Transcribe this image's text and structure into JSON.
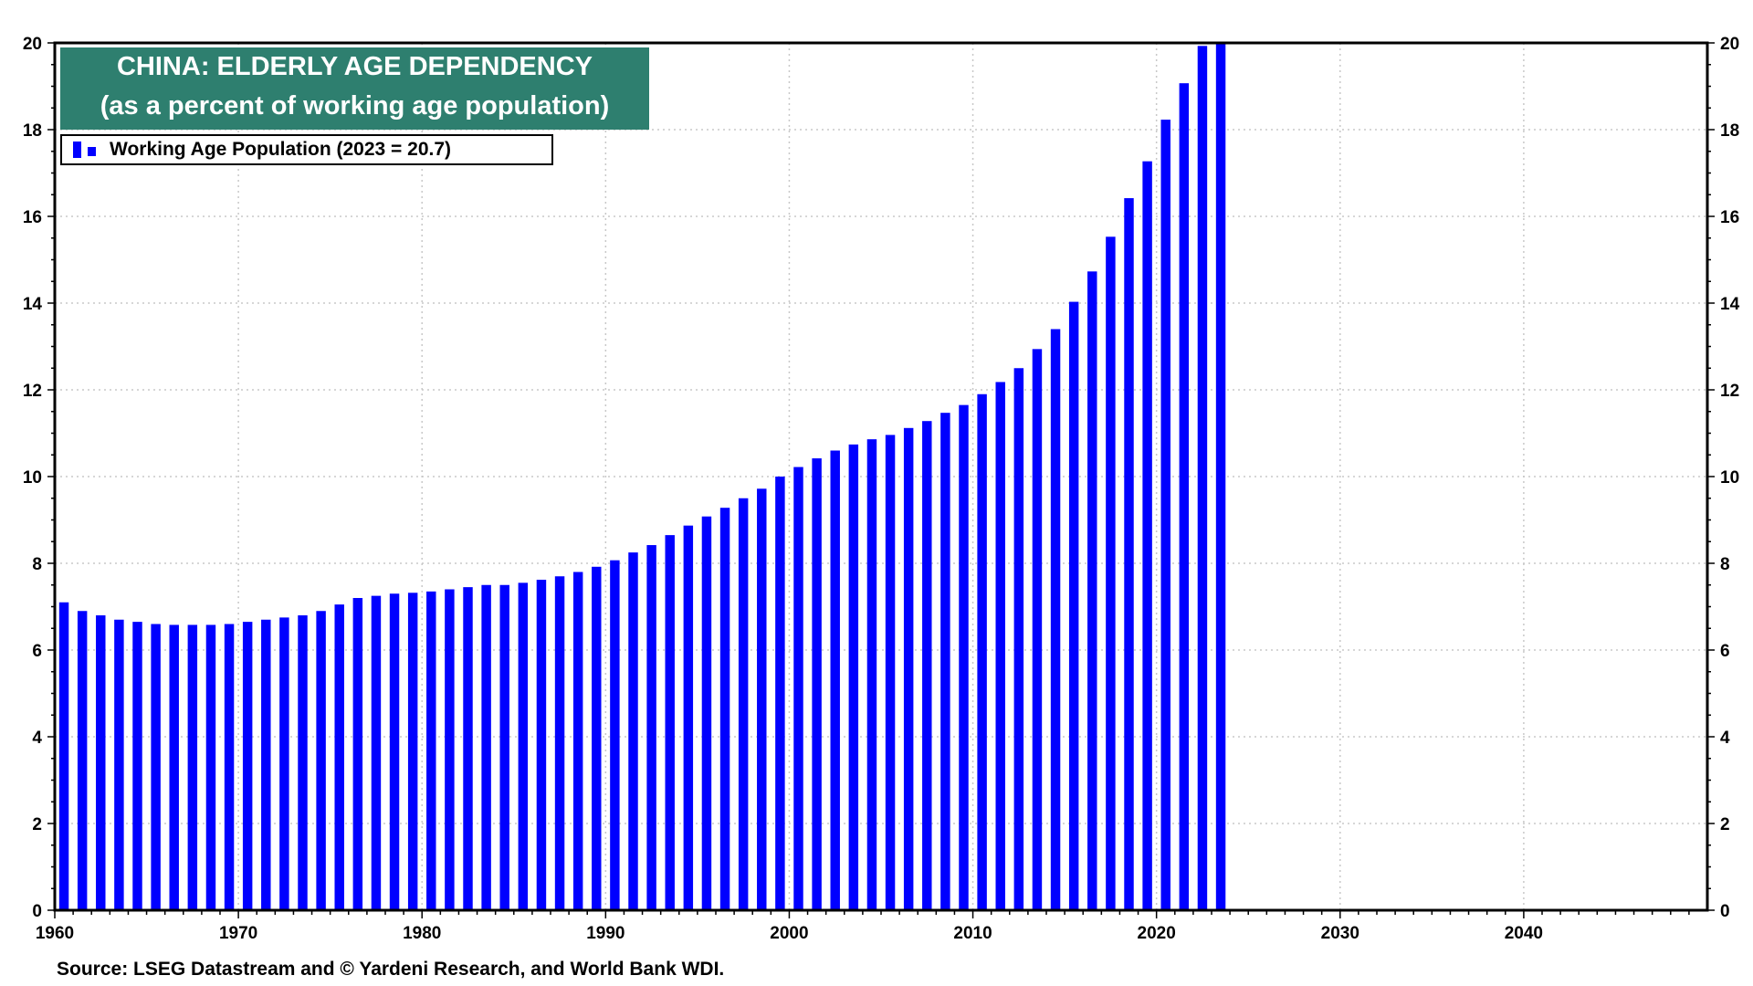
{
  "title": {
    "line1": "CHINA: ELDERLY AGE DEPENDENCY",
    "line2": "(as a percent of working age population)"
  },
  "legend": {
    "label": "Working Age Population (2023 = 20.7)"
  },
  "source": "Source: LSEG Datastream and © Yardeni Research, and World Bank WDI.",
  "colors": {
    "bar": "#0000ff",
    "title_bg": "#2e7f6f",
    "grid": "#c8c8c8"
  },
  "chart_data": {
    "type": "bar",
    "title": "CHINA: ELDERLY AGE DEPENDENCY (as a percent of working age population)",
    "xlabel": "",
    "ylabel": "",
    "xlim": [
      1960,
      2050
    ],
    "ylim": [
      0,
      20
    ],
    "grid": true,
    "legend_position": "top-left",
    "x_ticks": [
      1960,
      1970,
      1980,
      1990,
      2000,
      2010,
      2020,
      2030,
      2040
    ],
    "y_ticks": [
      0,
      2,
      4,
      6,
      8,
      10,
      12,
      14,
      16,
      18,
      20
    ],
    "series": [
      {
        "name": "Working Age Population (2023 = 20.7)",
        "x": [
          1960,
          1961,
          1962,
          1963,
          1964,
          1965,
          1966,
          1967,
          1968,
          1969,
          1970,
          1971,
          1972,
          1973,
          1974,
          1975,
          1976,
          1977,
          1978,
          1979,
          1980,
          1981,
          1982,
          1983,
          1984,
          1985,
          1986,
          1987,
          1988,
          1989,
          1990,
          1991,
          1992,
          1993,
          1994,
          1995,
          1996,
          1997,
          1998,
          1999,
          2000,
          2001,
          2002,
          2003,
          2004,
          2005,
          2006,
          2007,
          2008,
          2009,
          2010,
          2011,
          2012,
          2013,
          2014,
          2015,
          2016,
          2017,
          2018,
          2019,
          2020,
          2021,
          2022,
          2023
        ],
        "values": [
          7.1,
          6.9,
          6.8,
          6.7,
          6.65,
          6.6,
          6.58,
          6.58,
          6.58,
          6.6,
          6.65,
          6.7,
          6.75,
          6.8,
          6.9,
          7.05,
          7.2,
          7.25,
          7.3,
          7.32,
          7.35,
          7.4,
          7.45,
          7.5,
          7.5,
          7.55,
          7.62,
          7.7,
          7.8,
          7.92,
          8.07,
          8.25,
          8.42,
          8.65,
          8.87,
          9.08,
          9.28,
          9.5,
          9.72,
          10.0,
          10.22,
          10.42,
          10.6,
          10.74,
          10.86,
          10.96,
          11.12,
          11.28,
          11.47,
          11.65,
          11.9,
          12.18,
          12.5,
          12.94,
          13.4,
          14.03,
          14.73,
          15.53,
          16.42,
          17.27,
          18.23,
          19.07,
          19.93,
          20.7
        ]
      }
    ]
  }
}
